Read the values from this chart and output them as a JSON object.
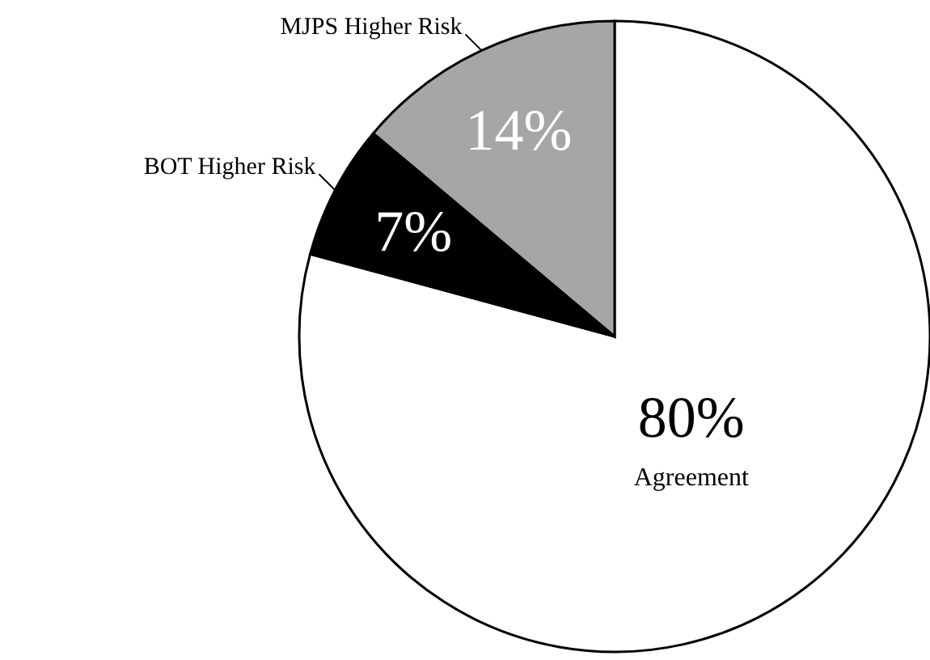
{
  "chart_data": {
    "type": "pie",
    "categories": [
      "Agreement",
      "BOT Higher Risk",
      "MJPS Higher Risk"
    ],
    "values": [
      80,
      7,
      14
    ],
    "colors": [
      "#ffffff",
      "#000000",
      "#a6a6a6"
    ],
    "value_labels": [
      "80%",
      "7%",
      "14%"
    ]
  }
}
